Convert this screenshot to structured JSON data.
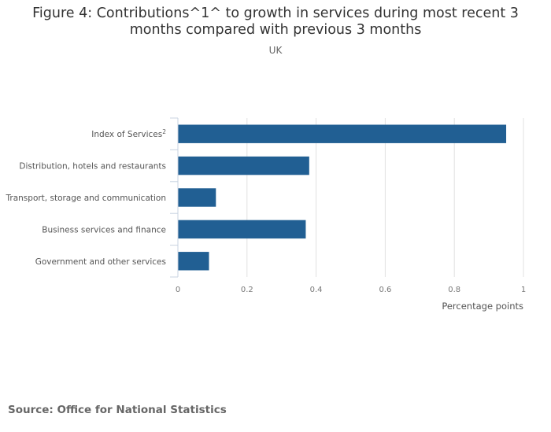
{
  "chart_data": {
    "type": "bar",
    "orientation": "horizontal",
    "title": "Figure 4: Contributions^1^ to growth in services during most recent 3 months compared with previous 3 months",
    "title_lines": [
      "Figure 4: Contributions^1^ to growth in services during most recent 3",
      "months compared with previous 3 months"
    ],
    "subtitle": "UK",
    "categories": [
      "Index of Services",
      "Distribution, hotels and restaurants",
      "Transport, storage and communication",
      "Business services and finance",
      "Government and other services"
    ],
    "category_superscripts": [
      "2",
      "",
      "",
      "",
      ""
    ],
    "values": [
      0.95,
      0.38,
      0.11,
      0.37,
      0.09
    ],
    "xlabel": "Percentage points",
    "ylabel": "",
    "xlim": [
      0,
      1
    ],
    "xticks": [
      0,
      0.2,
      0.4,
      0.6,
      0.8,
      1
    ],
    "xtick_labels": [
      "0",
      "0.2",
      "0.4",
      "0.6",
      "0.8",
      "1"
    ],
    "grid": true,
    "legend": "none",
    "bar_color": "#215f93",
    "grid_color": "#e2e2e2",
    "axis_color": "#c8d3e0"
  },
  "source": "Source: Office for National Statistics"
}
